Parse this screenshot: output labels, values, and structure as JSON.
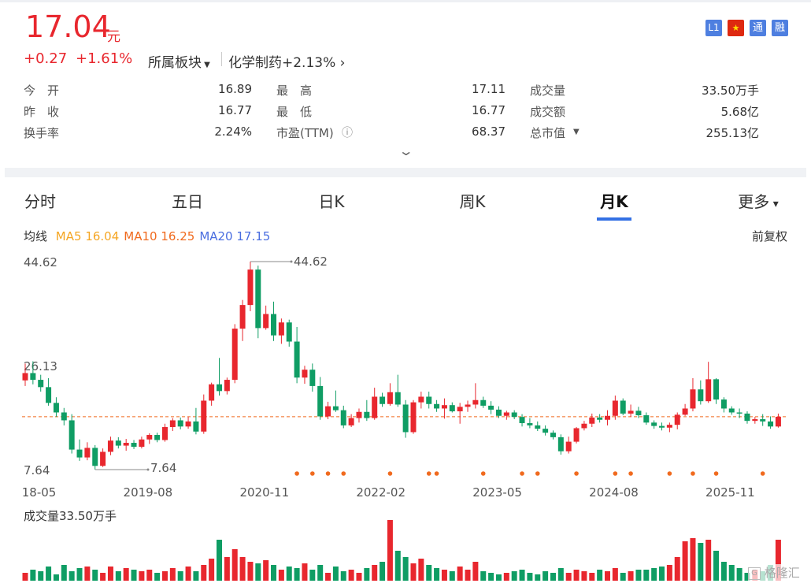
{
  "quote": {
    "price": 17.04,
    "unit": "元",
    "change": "+0.27",
    "change_pct": "+1.61%",
    "sector_label": "所属板块",
    "sector": "化学制药+2.13%",
    "badges": [
      "L1",
      "通",
      "融"
    ],
    "stats": [
      [
        {
          "label": "今　开",
          "value": "16.89"
        },
        {
          "label": "最　高",
          "value": "17.11"
        },
        {
          "label": "成交量",
          "value": "33.50万手"
        }
      ],
      [
        {
          "label": "昨　收",
          "value": "16.77"
        },
        {
          "label": "最　低",
          "value": "16.77"
        },
        {
          "label": "成交额",
          "value": "5.68亿"
        }
      ],
      [
        {
          "label": "换手率",
          "value": "2.24%"
        },
        {
          "label": "市盈(TTM)",
          "value": "68.37"
        },
        {
          "label": "总市值",
          "value": "255.13亿"
        }
      ]
    ]
  },
  "tabs": [
    "分时",
    "五日",
    "日K",
    "周K",
    "月K",
    "更多"
  ],
  "active_tab": 4,
  "chart_data": {
    "type": "candlestick",
    "legend_title": "均线",
    "adjust": "前复权",
    "series": [
      {
        "name": "MA5",
        "value": 16.04,
        "color": "#f5a623"
      },
      {
        "name": "MA10",
        "value": 16.25,
        "color": "#f06a1e"
      },
      {
        "name": "MA20",
        "value": 17.15,
        "color": "#4a6ee0"
      }
    ],
    "up_color": "#e8272e",
    "down_color": "#0f9d64",
    "ylim": [
      7.64,
      44.62
    ],
    "yticks": [
      44.62,
      26.13,
      7.64
    ],
    "high_annotation": 44.62,
    "low_annotation": 7.64,
    "xticks": [
      {
        "value": 0,
        "label": "2018-05"
      },
      {
        "value": 15,
        "label": "2019-08"
      },
      {
        "value": 30,
        "label": "2020-11"
      },
      {
        "value": 45,
        "label": "2022-02"
      },
      {
        "value": 60,
        "label": "2023-05"
      },
      {
        "value": 75,
        "label": "2024-08"
      },
      {
        "value": 90,
        "label": "2025-11"
      }
    ],
    "candles": [
      [
        23.5,
        26.5,
        22.5,
        24.8
      ],
      [
        24.8,
        26.9,
        22.8,
        23.6
      ],
      [
        23.6,
        24.5,
        21.5,
        22.3
      ],
      [
        22.3,
        23.9,
        19.0,
        19.5
      ],
      [
        19.5,
        20.5,
        17.0,
        17.8
      ],
      [
        17.8,
        18.6,
        15.5,
        16.4
      ],
      [
        16.4,
        17.5,
        10.5,
        11.2
      ],
      [
        11.2,
        13.0,
        9.2,
        9.8
      ],
      [
        9.8,
        12.5,
        9.3,
        11.5
      ],
      [
        11.5,
        12.0,
        7.64,
        8.3
      ],
      [
        8.3,
        11.4,
        8.1,
        10.8
      ],
      [
        10.8,
        13.5,
        10.2,
        12.8
      ],
      [
        12.8,
        13.4,
        11.4,
        11.9
      ],
      [
        11.9,
        13.1,
        11.0,
        12.4
      ],
      [
        12.4,
        12.9,
        11.3,
        11.7
      ],
      [
        11.7,
        13.5,
        11.4,
        13.0
      ],
      [
        13.0,
        14.1,
        12.2,
        13.8
      ],
      [
        13.8,
        14.2,
        12.5,
        12.9
      ],
      [
        12.9,
        15.8,
        12.6,
        15.2
      ],
      [
        15.2,
        16.8,
        14.5,
        16.4
      ],
      [
        16.4,
        16.9,
        14.8,
        15.3
      ],
      [
        15.3,
        17.0,
        14.9,
        16.2
      ],
      [
        16.2,
        18.6,
        13.9,
        14.4
      ],
      [
        14.4,
        21.0,
        14.0,
        19.9
      ],
      [
        19.9,
        23.1,
        19.0,
        22.8
      ],
      [
        22.8,
        27.5,
        20.8,
        21.6
      ],
      [
        21.6,
        24.0,
        21.0,
        23.6
      ],
      [
        23.6,
        33.5,
        23.0,
        32.7
      ],
      [
        32.7,
        37.8,
        30.5,
        36.9
      ],
      [
        36.9,
        44.62,
        35.8,
        43.2
      ],
      [
        43.2,
        43.9,
        31.0,
        32.8
      ],
      [
        32.8,
        36.8,
        32.5,
        35.3
      ],
      [
        35.3,
        37.5,
        30.5,
        31.5
      ],
      [
        31.5,
        34.5,
        30.0,
        33.8
      ],
      [
        33.8,
        34.3,
        29.5,
        30.4
      ],
      [
        30.4,
        33.0,
        23.0,
        24.0
      ],
      [
        24.0,
        26.1,
        22.9,
        25.4
      ],
      [
        25.4,
        26.5,
        21.5,
        22.5
      ],
      [
        22.5,
        24.1,
        16.5,
        17.1
      ],
      [
        17.1,
        19.7,
        16.6,
        18.9
      ],
      [
        18.9,
        21.7,
        17.9,
        18.2
      ],
      [
        18.2,
        19.0,
        15.0,
        15.5
      ],
      [
        15.5,
        17.5,
        15.2,
        16.8
      ],
      [
        16.8,
        18.5,
        16.0,
        17.9
      ],
      [
        17.9,
        20.0,
        16.3,
        16.8
      ],
      [
        16.8,
        22.2,
        16.5,
        20.6
      ],
      [
        20.6,
        21.3,
        18.8,
        19.3
      ],
      [
        19.3,
        23.0,
        19.0,
        21.4
      ],
      [
        21.4,
        24.5,
        18.8,
        19.2
      ],
      [
        19.2,
        20.0,
        13.3,
        14.3
      ],
      [
        14.3,
        20.0,
        14.0,
        19.6
      ],
      [
        19.6,
        21.5,
        18.5,
        20.6
      ],
      [
        20.6,
        21.5,
        18.5,
        19.3
      ],
      [
        19.3,
        20.0,
        17.9,
        18.5
      ],
      [
        18.5,
        20.3,
        16.7,
        19.1
      ],
      [
        19.1,
        19.6,
        17.8,
        18.0
      ],
      [
        18.0,
        19.5,
        15.8,
        18.8
      ],
      [
        18.8,
        19.9,
        17.9,
        19.2
      ],
      [
        19.2,
        23.0,
        18.5,
        20.0
      ],
      [
        20.0,
        20.6,
        18.6,
        19.0
      ],
      [
        19.0,
        19.8,
        17.5,
        18.3
      ],
      [
        18.3,
        18.9,
        16.8,
        17.2
      ],
      [
        17.2,
        18.1,
        16.5,
        17.8
      ],
      [
        17.8,
        18.2,
        16.6,
        17.0
      ],
      [
        17.0,
        17.5,
        15.3,
        15.9
      ],
      [
        15.9,
        16.8,
        15.0,
        15.5
      ],
      [
        15.5,
        16.2,
        14.5,
        14.9
      ],
      [
        14.9,
        15.5,
        13.7,
        14.2
      ],
      [
        14.2,
        14.6,
        13.0,
        13.4
      ],
      [
        13.4,
        13.9,
        10.3,
        10.9
      ],
      [
        10.9,
        13.5,
        10.5,
        12.6
      ],
      [
        12.6,
        15.2,
        12.3,
        15.0
      ],
      [
        15.0,
        16.3,
        14.6,
        15.8
      ],
      [
        15.8,
        17.6,
        15.2,
        16.9
      ],
      [
        16.9,
        17.5,
        16.0,
        16.5
      ],
      [
        16.5,
        18.2,
        15.5,
        17.2
      ],
      [
        17.2,
        20.8,
        16.5,
        19.9
      ],
      [
        19.9,
        20.3,
        17.3,
        17.6
      ],
      [
        17.6,
        19.2,
        17.0,
        18.1
      ],
      [
        18.1,
        18.8,
        16.8,
        17.3
      ],
      [
        17.3,
        17.8,
        15.6,
        16.0
      ],
      [
        16.0,
        16.4,
        14.9,
        15.4
      ],
      [
        15.4,
        16.0,
        14.6,
        15.1
      ],
      [
        15.1,
        16.0,
        14.3,
        15.6
      ],
      [
        15.6,
        17.8,
        14.8,
        17.4
      ],
      [
        17.4,
        19.3,
        17.2,
        18.5
      ],
      [
        18.5,
        23.9,
        18.0,
        21.9
      ],
      [
        21.9,
        23.5,
        19.2,
        19.8
      ],
      [
        19.8,
        26.8,
        19.5,
        23.7
      ],
      [
        23.7,
        23.9,
        19.3,
        20.1
      ],
      [
        20.1,
        20.5,
        17.8,
        18.5
      ],
      [
        18.5,
        18.9,
        17.4,
        17.8
      ],
      [
        17.8,
        18.5,
        16.8,
        17.6
      ],
      [
        17.6,
        18.0,
        15.8,
        16.3
      ],
      [
        16.3,
        17.0,
        15.8,
        16.6
      ],
      [
        16.6,
        17.5,
        15.4,
        16.2
      ],
      [
        16.2,
        17.1,
        14.9,
        15.3
      ],
      [
        15.3,
        17.6,
        15.1,
        17.04
      ]
    ],
    "events": [
      35,
      37,
      39,
      41,
      47,
      52,
      53,
      59,
      64,
      66,
      71,
      76,
      78,
      83,
      86,
      89,
      95
    ],
    "volume_label": "成交量33.50万手",
    "volume": [
      10,
      14,
      12,
      18,
      8,
      20,
      12,
      16,
      18,
      14,
      10,
      18,
      12,
      16,
      14,
      12,
      14,
      10,
      12,
      16,
      12,
      18,
      12,
      20,
      28,
      52,
      30,
      40,
      30,
      24,
      22,
      26,
      20,
      14,
      18,
      16,
      22,
      14,
      20,
      10,
      18,
      12,
      14,
      10,
      16,
      20,
      24,
      77,
      38,
      30,
      22,
      28,
      20,
      16,
      14,
      12,
      18,
      14,
      24,
      12,
      10,
      8,
      10,
      12,
      14,
      10,
      8,
      12,
      10,
      16,
      10,
      14,
      12,
      10,
      14,
      12,
      16,
      10,
      12,
      14,
      14,
      16,
      18,
      20,
      30,
      50,
      54,
      48,
      52,
      38,
      24,
      20,
      16,
      10,
      14,
      12,
      20,
      52
    ]
  },
  "watermark": "格隆汇"
}
